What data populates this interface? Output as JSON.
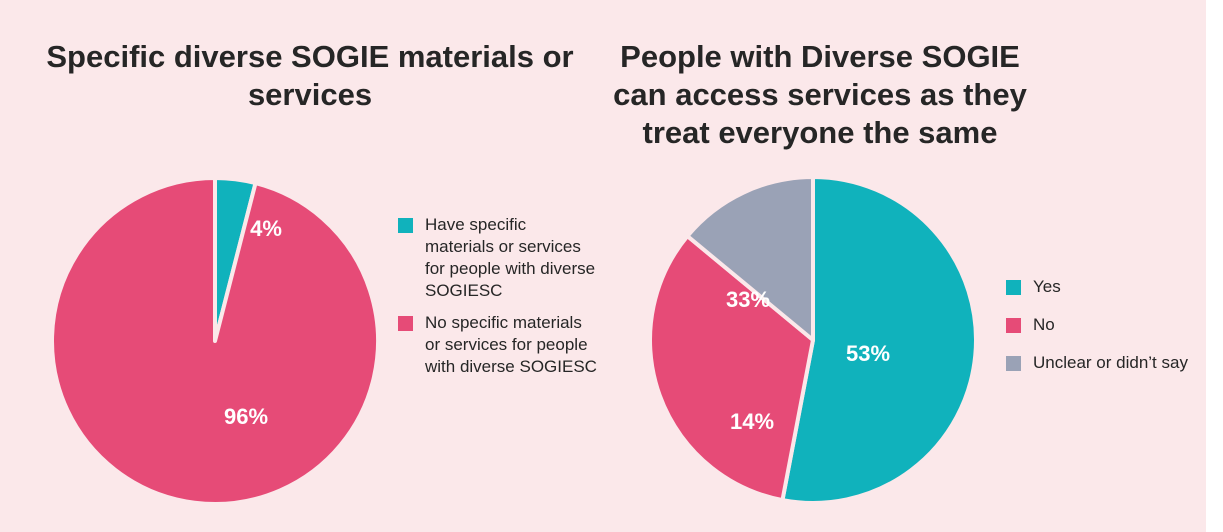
{
  "chart_data": [
    {
      "type": "pie",
      "title": "Specific diverse SOGIE materials or services",
      "slices": [
        {
          "label": "Have specific materials or services for people with diverse SOGIESC",
          "value": 4,
          "display": "4%",
          "color": "#10b2bc"
        },
        {
          "label": "No specific materials or services for people with diverse SOGIESC",
          "value": 96,
          "display": "96%",
          "color": "#e64b77"
        }
      ],
      "legend": "right"
    },
    {
      "type": "pie",
      "title": "People with Diverse SOGIE can access services as they treat everyone the same",
      "slices": [
        {
          "label": "Yes",
          "value": 53,
          "display": "53%",
          "color": "#10b2bc"
        },
        {
          "label": "No",
          "value": 33,
          "display": "33%",
          "color": "#e64b77"
        },
        {
          "label": "Unclear or didn’t say",
          "value": 14,
          "display": "14%",
          "color": "#9aa2b6"
        }
      ],
      "legend": "right"
    }
  ],
  "colors": {
    "background": "#fbe8ea",
    "separator": "#fbe8ea"
  }
}
